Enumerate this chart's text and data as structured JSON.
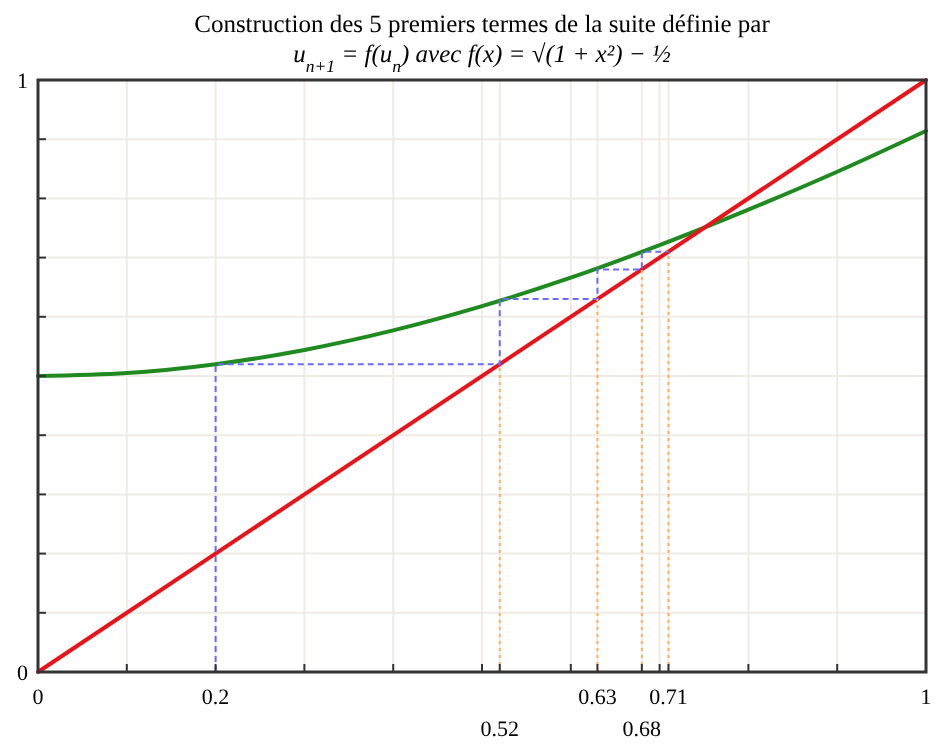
{
  "chart_data": {
    "type": "line",
    "title": "Construction des 5 premiers termes de la suite définie par",
    "subtitle": "u$_{n+1}$ = f(u$_{n}$) avec f(x) = √(1 + x²) − ½",
    "xlim": [
      0,
      1
    ],
    "ylim": [
      0,
      1
    ],
    "xticks": [
      0,
      {
        "value": 0.1,
        "label": null
      },
      0.2,
      {
        "value": 0.3,
        "label": null
      },
      {
        "value": 0.4,
        "label": null
      },
      {
        "value": 0.5,
        "label": null
      },
      {
        "value": 0.52,
        "label": null
      },
      {
        "value": 0.6,
        "label": null
      },
      0.63,
      {
        "value": 0.68,
        "label": null
      },
      {
        "value": 0.7,
        "label": null
      },
      0.71,
      {
        "value": 0.8,
        "label": null
      },
      {
        "value": 0.9,
        "label": null
      },
      1
    ],
    "yticks": [
      0,
      {
        "value": 0.1,
        "label": null
      },
      {
        "value": 0.2,
        "label": null
      },
      {
        "value": 0.3,
        "label": null
      },
      {
        "value": 0.4,
        "label": null
      },
      {
        "value": 0.5,
        "label": null
      },
      {
        "value": 0.6,
        "label": null
      },
      {
        "value": 0.7,
        "label": null
      },
      {
        "value": 0.8,
        "label": null
      },
      {
        "value": 0.9,
        "label": null
      },
      1
    ],
    "grid": true,
    "marker": "none",
    "annotations": [
      {
        "text": "0.52",
        "x": 0.52,
        "y": 0
      },
      {
        "text": "0.68",
        "x": 0.68,
        "y": 0
      }
    ],
    "series": [
      {
        "color": "#1f8a1f",
        "line_style": "solid",
        "x": [
          0,
          0.1,
          0.2,
          0.3,
          0.4,
          0.5,
          0.6,
          0.7,
          0.8,
          0.9,
          1
        ],
        "values": [
          0.5,
          0.505,
          0.52,
          0.544,
          0.577,
          0.618,
          0.666,
          0.721,
          0.781,
          0.845,
          0.914
        ]
      },
      {
        "color": "#e8141b",
        "line_style": "solid",
        "x": [
          0,
          1
        ],
        "values": [
          0,
          1
        ]
      },
      {
        "color": "#6b6bff",
        "line_style": "dashed",
        "x": [
          0.2,
          0.2,
          0.52,
          0.52,
          0.63,
          0.63,
          0.68,
          0.68,
          0.71
        ],
        "values": [
          0,
          0.52,
          0.52,
          0.63,
          0.63,
          0.68,
          0.68,
          0.71,
          0.71
        ]
      },
      {
        "color": "#ffb060",
        "line_style": "dotted",
        "x": [
          0.52,
          0.52
        ],
        "values": [
          0,
          0.52
        ]
      },
      {
        "color": "#ffb060",
        "line_style": "dotted",
        "x": [
          0.63,
          0.63
        ],
        "values": [
          0,
          0.63
        ]
      },
      {
        "color": "#ffb060",
        "line_style": "dotted",
        "x": [
          0.68,
          0.68
        ],
        "values": [
          0,
          0.68
        ]
      },
      {
        "color": "#ffb060",
        "line_style": "dotted",
        "x": [
          0.71,
          0.71
        ],
        "values": [
          0,
          0.71
        ]
      }
    ]
  }
}
